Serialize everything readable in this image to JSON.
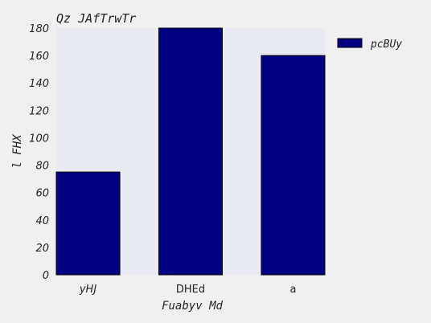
{
  "chart_data": {
    "type": "bar",
    "title": "Qz JAfTrwTr",
    "xlabel": "Fuabyv Md",
    "ylabel": "l FHX",
    "categories": [
      "yHJ",
      "DHEd",
      "a"
    ],
    "series": [
      {
        "name": "pcBUy",
        "values": [
          75,
          180,
          160
        ],
        "color": "#000080"
      }
    ],
    "ylim": [
      0,
      180
    ],
    "yticks": [
      0,
      20,
      40,
      60,
      80,
      100,
      120,
      140,
      160,
      180
    ],
    "grid": false,
    "legend": "top-right-outside",
    "plot_background": "#eaeaf2",
    "page_background": "#f0f0f0"
  }
}
